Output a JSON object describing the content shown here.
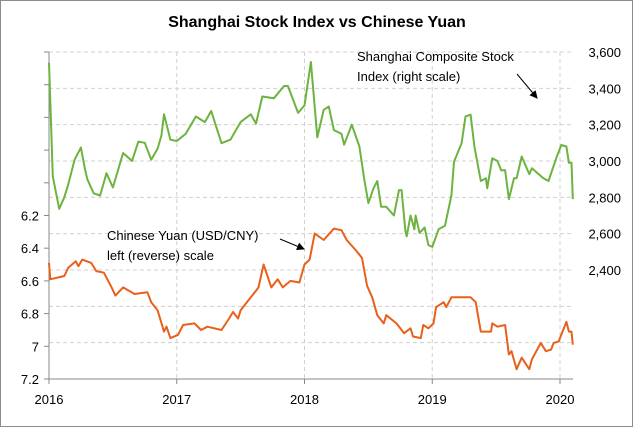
{
  "chart_data": {
    "type": "line",
    "title": "Shanghai Stock Index vs Chinese Yuan",
    "xlabel": "",
    "x_ticks": [
      "2016",
      "2017",
      "2018",
      "2019",
      "2020"
    ],
    "xlim": [
      2016,
      2020.1
    ],
    "grid": true,
    "left_axis": {
      "ticks": [
        "6.2",
        "6.4",
        "6.6",
        "6.8",
        "7",
        "7.2"
      ],
      "ylim": [
        5.2,
        7.2
      ],
      "reversed": true
    },
    "right_axis": {
      "ticks": [
        "3,600",
        "3,400",
        "3,200",
        "3,000",
        "2,800",
        "2,600",
        "2,400"
      ],
      "ylim": [
        1800,
        3600
      ]
    },
    "annotations": [
      {
        "lines": [
          "Shanghai Composite Stock",
          "Index (right scale)"
        ],
        "target": "stock"
      },
      {
        "lines": [
          "Chinese Yuan (USD/CNY)",
          "left (reverse) scale"
        ],
        "target": "yuan"
      }
    ],
    "series": [
      {
        "name": "Shanghai Composite Stock Index",
        "axis": "right",
        "color": "#6db33f",
        "x": [
          2016.0,
          2016.03,
          2016.08,
          2016.12,
          2016.15,
          2016.2,
          2016.25,
          2016.28,
          2016.3,
          2016.35,
          2016.4,
          2016.45,
          2016.5,
          2016.58,
          2016.65,
          2016.7,
          2016.75,
          2016.8,
          2016.85,
          2016.88,
          2016.9,
          2016.95,
          2017.0,
          2017.07,
          2017.15,
          2017.22,
          2017.27,
          2017.35,
          2017.42,
          2017.5,
          2017.58,
          2017.62,
          2017.67,
          2017.76,
          2017.84,
          2017.87,
          2017.95,
          2018.0,
          2018.05,
          2018.1,
          2018.15,
          2018.19,
          2018.23,
          2018.29,
          2018.31,
          2018.37,
          2018.43,
          2018.47,
          2018.5,
          2018.54,
          2018.57,
          2018.6,
          2018.64,
          2018.7,
          2018.74,
          2018.76,
          2018.79,
          2018.8,
          2018.83,
          2018.86,
          2018.87,
          2018.9,
          2018.94,
          2018.97,
          2019.0,
          2019.05,
          2019.1,
          2019.15,
          2019.17,
          2019.23,
          2019.26,
          2019.3,
          2019.33,
          2019.38,
          2019.42,
          2019.43,
          2019.47,
          2019.51,
          2019.54,
          2019.57,
          2019.6,
          2019.64,
          2019.66,
          2019.7,
          2019.76,
          2019.78,
          2019.87,
          2019.91,
          2019.97,
          2020.01,
          2020.05,
          2020.07,
          2020.09,
          2020.1
        ],
        "values": [
          3540,
          2915,
          2737,
          2800,
          2870,
          3007,
          3074,
          2960,
          2900,
          2822,
          2810,
          2933,
          2854,
          3044,
          3000,
          3107,
          3100,
          3007,
          3068,
          3140,
          3257,
          3117,
          3110,
          3150,
          3245,
          3214,
          3275,
          3098,
          3117,
          3214,
          3257,
          3206,
          3355,
          3345,
          3413,
          3413,
          3265,
          3306,
          3545,
          3130,
          3282,
          3300,
          3170,
          3150,
          3090,
          3200,
          3080,
          2890,
          2768,
          2850,
          2890,
          2748,
          2748,
          2700,
          2840,
          2840,
          2614,
          2585,
          2700,
          2624,
          2700,
          2605,
          2634,
          2537,
          2527,
          2624,
          2644,
          2810,
          2996,
          3098,
          3245,
          3255,
          3080,
          2890,
          2905,
          2850,
          3015,
          3000,
          2948,
          2950,
          2790,
          2905,
          2905,
          3025,
          2928,
          2960,
          2905,
          2890,
          3015,
          3088,
          3080,
          2990,
          2990,
          2790
        ]
      },
      {
        "name": "Chinese Yuan (USD/CNY)",
        "axis": "left",
        "color": "#e8601c",
        "x": [
          2016.0,
          2016.01,
          2016.12,
          2016.15,
          2016.21,
          2016.23,
          2016.26,
          2016.33,
          2016.37,
          2016.43,
          2016.49,
          2016.52,
          2016.58,
          2016.67,
          2016.77,
          2016.8,
          2016.85,
          2016.9,
          2016.92,
          2016.95,
          2017.01,
          2017.05,
          2017.14,
          2017.19,
          2017.24,
          2017.35,
          2017.41,
          2017.44,
          2017.48,
          2017.5,
          2017.58,
          2017.62,
          2017.64,
          2017.68,
          2017.74,
          2017.79,
          2017.83,
          2017.89,
          2017.96,
          2018.0,
          2018.04,
          2018.08,
          2018.15,
          2018.23,
          2018.29,
          2018.33,
          2018.41,
          2018.45,
          2018.49,
          2018.53,
          2018.57,
          2018.62,
          2018.64,
          2018.72,
          2018.78,
          2018.83,
          2018.85,
          2018.91,
          2018.93,
          2018.97,
          2019.01,
          2019.03,
          2019.09,
          2019.11,
          2019.15,
          2019.3,
          2019.34,
          2019.38,
          2019.46,
          2019.47,
          2019.51,
          2019.57,
          2019.6,
          2019.62,
          2019.66,
          2019.7,
          2019.76,
          2019.78,
          2019.85,
          2019.89,
          2019.93,
          2019.95,
          2019.99,
          2020.05,
          2020.07,
          2020.09,
          2020.1
        ],
        "values": [
          6.49,
          6.59,
          6.57,
          6.52,
          6.48,
          6.51,
          6.47,
          6.49,
          6.54,
          6.55,
          6.64,
          6.69,
          6.64,
          6.68,
          6.67,
          6.73,
          6.78,
          6.91,
          6.88,
          6.95,
          6.93,
          6.87,
          6.86,
          6.9,
          6.88,
          6.9,
          6.83,
          6.79,
          6.83,
          6.78,
          6.7,
          6.66,
          6.64,
          6.5,
          6.64,
          6.59,
          6.64,
          6.6,
          6.61,
          6.5,
          6.47,
          6.31,
          6.35,
          6.28,
          6.29,
          6.35,
          6.42,
          6.46,
          6.63,
          6.7,
          6.81,
          6.86,
          6.81,
          6.86,
          6.92,
          6.89,
          6.94,
          6.95,
          6.87,
          6.89,
          6.86,
          6.76,
          6.73,
          6.76,
          6.7,
          6.7,
          6.73,
          6.91,
          6.91,
          6.86,
          6.88,
          6.87,
          7.05,
          7.03,
          7.14,
          7.07,
          7.14,
          7.08,
          6.98,
          7.03,
          7.02,
          6.98,
          6.97,
          6.85,
          6.91,
          6.91,
          6.99
        ]
      }
    ]
  }
}
